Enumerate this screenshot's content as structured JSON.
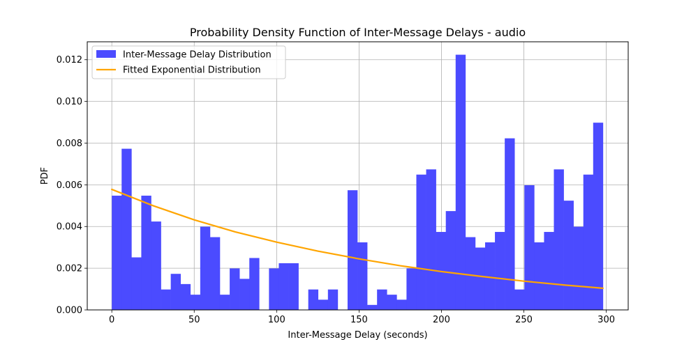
{
  "chart_data": {
    "type": "bar",
    "title": "Probability Density Function of Inter-Message Delays - audio",
    "xlabel": "Inter-Message Delay (seconds)",
    "ylabel": "PDF",
    "xlim": [
      -14.9,
      313.3
    ],
    "ylim": [
      0,
      0.01286
    ],
    "x_ticks": [
      0,
      50,
      100,
      150,
      200,
      250,
      300
    ],
    "x_tick_labels": [
      "0",
      "50",
      "100",
      "150",
      "200",
      "250",
      "300"
    ],
    "y_ticks": [
      0,
      0.002,
      0.004,
      0.006,
      0.008,
      0.01,
      0.012
    ],
    "y_tick_labels": [
      "0.000",
      "0.002",
      "0.004",
      "0.006",
      "0.008",
      "0.010",
      "0.012"
    ],
    "grid": true,
    "legend_position": "upper-left",
    "histogram": {
      "name": "Inter-Message Delay Distribution",
      "color": "#4b4bff",
      "bin_start": 0,
      "bin_width": 5.96,
      "values": [
        0.00548,
        0.00773,
        0.00252,
        0.00548,
        0.00424,
        0.00098,
        0.00173,
        0.00124,
        0.00073,
        0.00399,
        0.00349,
        0.00073,
        0.00199,
        0.00149,
        0.00249,
        0.0,
        0.00199,
        0.00224,
        0.00224,
        0.0,
        0.00098,
        0.00049,
        0.00098,
        0.0,
        0.00574,
        0.00324,
        0.00024,
        0.00098,
        0.00073,
        0.00049,
        0.00199,
        0.00649,
        0.00674,
        0.00374,
        0.00474,
        0.01224,
        0.00349,
        0.00299,
        0.00324,
        0.00374,
        0.00823,
        0.00098,
        0.00598,
        0.00324,
        0.00374,
        0.00674,
        0.00524,
        0.00399,
        0.00649,
        0.00898
      ]
    },
    "fit_line": {
      "name": "Fitted Exponential Distribution",
      "color": "#ffa500",
      "function": "exponential",
      "x": [
        0,
        25,
        50,
        75,
        100,
        125,
        150,
        175,
        200,
        225,
        250,
        275,
        298
      ],
      "y": [
        0.00578,
        0.005,
        0.00432,
        0.00374,
        0.00325,
        0.00282,
        0.00245,
        0.00212,
        0.00184,
        0.0016,
        0.00138,
        0.00119,
        0.00104
      ]
    }
  }
}
